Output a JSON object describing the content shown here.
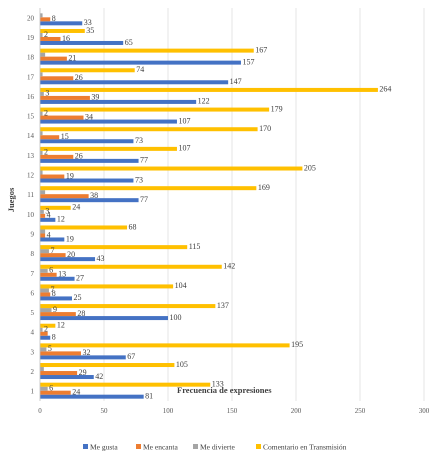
{
  "chart_data": {
    "type": "bar",
    "orientation": "horizontal",
    "title": "",
    "xlabel": "Frecuencia de expresiones",
    "ylabel": "Juegos",
    "xlim": [
      0,
      300
    ],
    "xticks": [
      0,
      50,
      100,
      150,
      200,
      250,
      300
    ],
    "grid": "vertical",
    "legend_position": "bottom",
    "categories": [
      "1",
      "2",
      "3",
      "4",
      "5",
      "6",
      "7",
      "8",
      "9",
      "10",
      "11",
      "12",
      "13",
      "14",
      "15",
      "16",
      "17",
      "18",
      "19",
      "20"
    ],
    "series": [
      {
        "name": "Me gusta",
        "color": "#4472C4",
        "values": [
          81,
          42,
          67,
          8,
          100,
          25,
          27,
          43,
          19,
          12,
          77,
          73,
          77,
          73,
          107,
          122,
          147,
          157,
          65,
          33
        ],
        "labels": [
          "81",
          "42",
          "67",
          "8",
          "100",
          "25",
          "27",
          "43",
          "19",
          "12",
          "77",
          "73",
          "77",
          "73",
          "107",
          "122",
          "147",
          "157",
          "65",
          "33"
        ]
      },
      {
        "name": "Me encanta",
        "color": "#ED7D31",
        "values": [
          24,
          29,
          32,
          6,
          28,
          8,
          13,
          20,
          4,
          4,
          38,
          19,
          26,
          15,
          34,
          39,
          26,
          21,
          16,
          8
        ],
        "labels": [
          "24",
          "29",
          "32",
          "",
          "28",
          "8",
          "13",
          "20",
          "4",
          "4",
          "38",
          "19",
          "26",
          "15",
          "34",
          "39",
          "26",
          "21",
          "16",
          "8"
        ]
      },
      {
        "name": "Me divierte",
        "color": "#A5A5A5",
        "values": [
          6,
          3,
          5,
          2,
          9,
          7,
          6,
          7,
          4,
          3,
          4,
          2,
          2,
          2,
          2,
          3,
          2,
          4,
          2,
          2
        ],
        "labels": [
          "6",
          "",
          "5",
          "2",
          "9",
          "7",
          "6",
          "7",
          "",
          "3",
          "",
          "",
          "2",
          "",
          "2",
          "3",
          "",
          "",
          "2",
          ""
        ]
      },
      {
        "name": "Comentario en Transmisión",
        "color": "#FFC000",
        "values": [
          133,
          105,
          195,
          12,
          137,
          104,
          142,
          115,
          68,
          24,
          169,
          205,
          107,
          170,
          179,
          264,
          74,
          167,
          35,
          0
        ],
        "labels": [
          "133",
          "105",
          "195",
          "12",
          "137",
          "104",
          "142",
          "115",
          "68",
          "24",
          "169",
          "205",
          "107",
          "170",
          "179",
          "264",
          "74",
          "167",
          "35",
          ""
        ]
      }
    ]
  }
}
